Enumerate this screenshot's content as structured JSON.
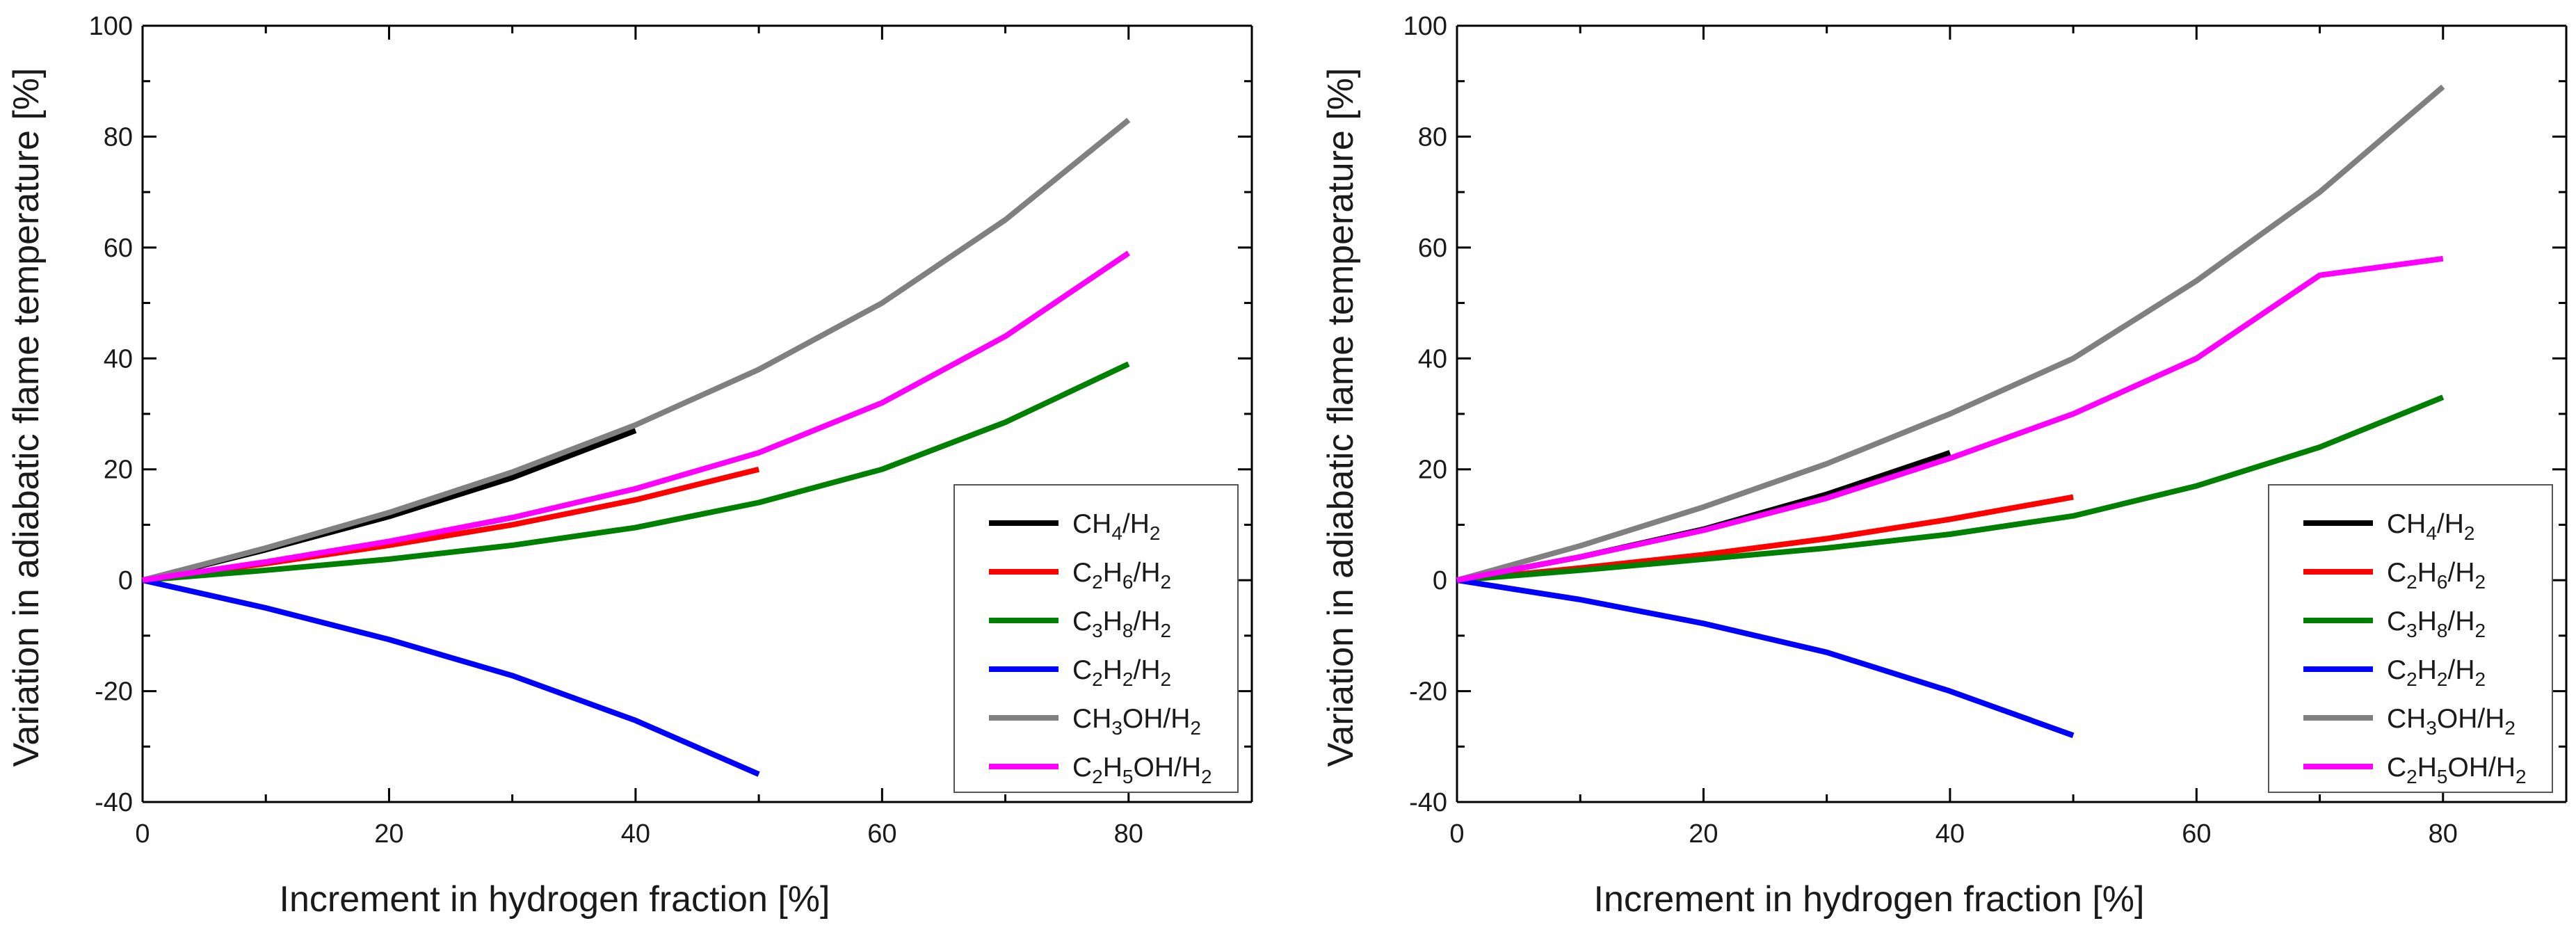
{
  "chart_data": [
    {
      "type": "line",
      "xlabel": "Increment in hydrogen fraction [%]",
      "ylabel": "Variation in adiabatic flame temperature [%]",
      "xlim": [
        0,
        90
      ],
      "ylim": [
        -40,
        100
      ],
      "xticks": [
        0,
        20,
        40,
        60,
        80
      ],
      "yticks": [
        -40,
        -20,
        0,
        20,
        40,
        60,
        80,
        100
      ],
      "grid": false,
      "legend_position": "right",
      "series": [
        {
          "name": "CH4/H2",
          "label_parts": [
            [
              "CH",
              ""
            ],
            [
              "4",
              "sub"
            ],
            [
              "/H",
              ""
            ],
            [
              "2",
              "sub"
            ]
          ],
          "color": "#000000",
          "x": [
            0,
            10,
            20,
            30,
            40
          ],
          "y": [
            0,
            5.5,
            11.5,
            18.5,
            27
          ]
        },
        {
          "name": "C2H6/H2",
          "label_parts": [
            [
              "C",
              ""
            ],
            [
              "2",
              "sub"
            ],
            [
              "H",
              ""
            ],
            [
              "6",
              "sub"
            ],
            [
              "/H",
              ""
            ],
            [
              "2",
              "sub"
            ]
          ],
          "color": "#ff0000",
          "x": [
            0,
            10,
            20,
            30,
            40,
            50
          ],
          "y": [
            0,
            3.0,
            6.3,
            10.0,
            14.5,
            20
          ]
        },
        {
          "name": "C3H8/H2",
          "label_parts": [
            [
              "C",
              ""
            ],
            [
              "3",
              "sub"
            ],
            [
              "H",
              ""
            ],
            [
              "8",
              "sub"
            ],
            [
              "/H",
              ""
            ],
            [
              "2",
              "sub"
            ]
          ],
          "color": "#008000",
          "x": [
            0,
            10,
            20,
            30,
            40,
            50,
            60,
            70,
            80
          ],
          "y": [
            0,
            1.8,
            3.8,
            6.3,
            9.5,
            14,
            20,
            28.5,
            39
          ]
        },
        {
          "name": "C2H2/H2",
          "label_parts": [
            [
              "C",
              ""
            ],
            [
              "2",
              "sub"
            ],
            [
              "H",
              ""
            ],
            [
              "2",
              "sub"
            ],
            [
              "/H",
              ""
            ],
            [
              "2",
              "sub"
            ]
          ],
          "color": "#0000ff",
          "x": [
            0,
            10,
            20,
            30,
            40,
            50
          ],
          "y": [
            0,
            -5,
            -10.7,
            -17.2,
            -25.3,
            -35
          ]
        },
        {
          "name": "CH3OH/H2",
          "label_parts": [
            [
              "CH",
              ""
            ],
            [
              "3",
              "sub"
            ],
            [
              "OH/H",
              ""
            ],
            [
              "2",
              "sub"
            ]
          ],
          "color": "#808080",
          "x": [
            0,
            10,
            20,
            30,
            40,
            50,
            60,
            70,
            80
          ],
          "y": [
            0,
            5.8,
            12.2,
            19.5,
            28,
            38,
            50,
            65,
            83
          ]
        },
        {
          "name": "C2H5OH/H2",
          "label_parts": [
            [
              "C",
              ""
            ],
            [
              "2",
              "sub"
            ],
            [
              "H",
              ""
            ],
            [
              "5",
              "sub"
            ],
            [
              "OH/H",
              ""
            ],
            [
              "2",
              "sub"
            ]
          ],
          "color": "#ff00ff",
          "x": [
            0,
            10,
            20,
            30,
            40,
            50,
            60,
            70,
            80
          ],
          "y": [
            0,
            3.3,
            7.0,
            11.3,
            16.5,
            23,
            32,
            44,
            59
          ]
        }
      ]
    },
    {
      "type": "line",
      "xlabel": "Increment in hydrogen fraction [%]",
      "ylabel": "Variation in adiabatic flame temperature [%]",
      "xlim": [
        0,
        90
      ],
      "ylim": [
        -40,
        100
      ],
      "xticks": [
        0,
        20,
        40,
        60,
        80
      ],
      "yticks": [
        -40,
        -20,
        0,
        20,
        40,
        60,
        80,
        100
      ],
      "grid": false,
      "legend_position": "right",
      "series": [
        {
          "name": "CH4/H2",
          "label_parts": [
            [
              "CH",
              ""
            ],
            [
              "4",
              "sub"
            ],
            [
              "/H",
              ""
            ],
            [
              "2",
              "sub"
            ]
          ],
          "color": "#000000",
          "x": [
            0,
            10,
            20,
            30,
            40
          ],
          "y": [
            0,
            4.2,
            9.2,
            15.5,
            23
          ]
        },
        {
          "name": "C2H6/H2",
          "label_parts": [
            [
              "C",
              ""
            ],
            [
              "2",
              "sub"
            ],
            [
              "H",
              ""
            ],
            [
              "6",
              "sub"
            ],
            [
              "/H",
              ""
            ],
            [
              "2",
              "sub"
            ]
          ],
          "color": "#ff0000",
          "x": [
            0,
            10,
            20,
            30,
            40,
            50
          ],
          "y": [
            0,
            2.2,
            4.6,
            7.5,
            11,
            15
          ]
        },
        {
          "name": "C3H8/H2",
          "label_parts": [
            [
              "C",
              ""
            ],
            [
              "3",
              "sub"
            ],
            [
              "H",
              ""
            ],
            [
              "8",
              "sub"
            ],
            [
              "/H",
              ""
            ],
            [
              "2",
              "sub"
            ]
          ],
          "color": "#008000",
          "x": [
            0,
            10,
            20,
            30,
            40,
            50,
            60,
            70,
            80
          ],
          "y": [
            0,
            1.8,
            3.8,
            5.8,
            8.3,
            11.6,
            17,
            24,
            33
          ]
        },
        {
          "name": "C2H2/H2",
          "label_parts": [
            [
              "C",
              ""
            ],
            [
              "2",
              "sub"
            ],
            [
              "H",
              ""
            ],
            [
              "2",
              "sub"
            ],
            [
              "/H",
              ""
            ],
            [
              "2",
              "sub"
            ]
          ],
          "color": "#0000ff",
          "x": [
            0,
            10,
            20,
            30,
            40,
            50
          ],
          "y": [
            0,
            -3.5,
            -7.8,
            -13.0,
            -20,
            -28
          ]
        },
        {
          "name": "CH3OH/H2",
          "label_parts": [
            [
              "CH",
              ""
            ],
            [
              "3",
              "sub"
            ],
            [
              "OH/H",
              ""
            ],
            [
              "2",
              "sub"
            ]
          ],
          "color": "#808080",
          "x": [
            0,
            10,
            20,
            30,
            40,
            50,
            60,
            70,
            80
          ],
          "y": [
            0,
            6.2,
            13.2,
            21,
            30,
            40,
            54,
            70,
            89
          ]
        },
        {
          "name": "C2H5OH/H2",
          "label_parts": [
            [
              "C",
              ""
            ],
            [
              "2",
              "sub"
            ],
            [
              "H",
              ""
            ],
            [
              "5",
              "sub"
            ],
            [
              "OH/H",
              ""
            ],
            [
              "2",
              "sub"
            ]
          ],
          "color": "#ff00ff",
          "x": [
            0,
            10,
            20,
            30,
            40,
            50,
            60,
            70,
            80
          ],
          "y": [
            0,
            4.2,
            9,
            14.8,
            22,
            30,
            40,
            55,
            58
          ]
        }
      ]
    }
  ]
}
